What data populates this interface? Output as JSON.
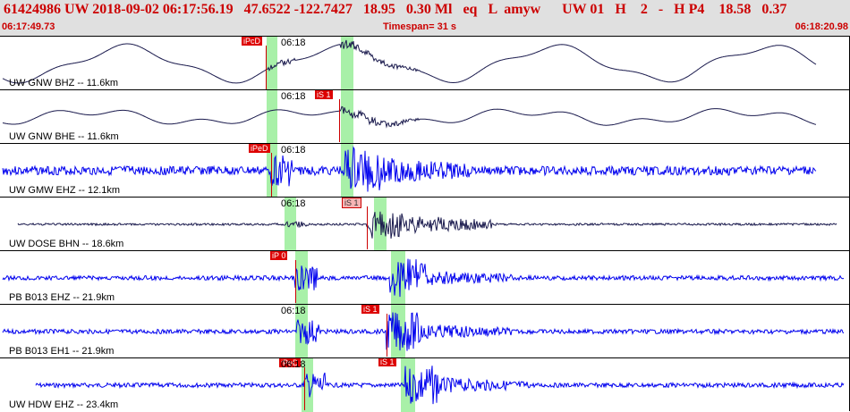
{
  "header": {
    "title": "61424986 UW 2018-09-02 06:17:56.19   47.6522 -122.7427   18.95   0.30 Ml   eq   L  amyw      UW 01   H    2   -   H P4    18.58   0.37",
    "start_time": "06:17:49.73",
    "timespan": "Timespan=  31 s",
    "end_time": "06:18:20.98"
  },
  "colors": {
    "trace_dark": "#1a1a4d",
    "trace_blue": "#0000ee",
    "pick_red": "#dd0000",
    "pick_bg_light": "#f6b4b4",
    "highlight": "#a8f0a8",
    "header_bg": "#e0e0e0",
    "header_text": "#cc0000"
  },
  "panels": [
    {
      "channel": "UW GNW BHZ -- 11.6km",
      "time": "06:18",
      "pick": "iPcD"
    },
    {
      "channel": "UW GNW BHE -- 11.6km",
      "time": "06:18",
      "pick": "iS 1"
    },
    {
      "channel": "UW GMW EHZ -- 12.1km",
      "time": "06:18",
      "pick": "iPeD"
    },
    {
      "channel": "UW DOSE BHN -- 18.6km",
      "time": "06:18",
      "pick": "iS 1"
    },
    {
      "channel": "PB B013 EHZ -- 21.9km",
      "time": "06:18",
      "pick": "iP 0"
    },
    {
      "channel": "PB B013 EH1 -- 21.9km",
      "time": "06:18",
      "pick": "iS 1",
      "pick2": "iS 1"
    },
    {
      "channel": "UW HDW EHZ -- 23.4km",
      "time": "06:18",
      "pick": "iPeD",
      "pick2": "iS 1"
    }
  ]
}
